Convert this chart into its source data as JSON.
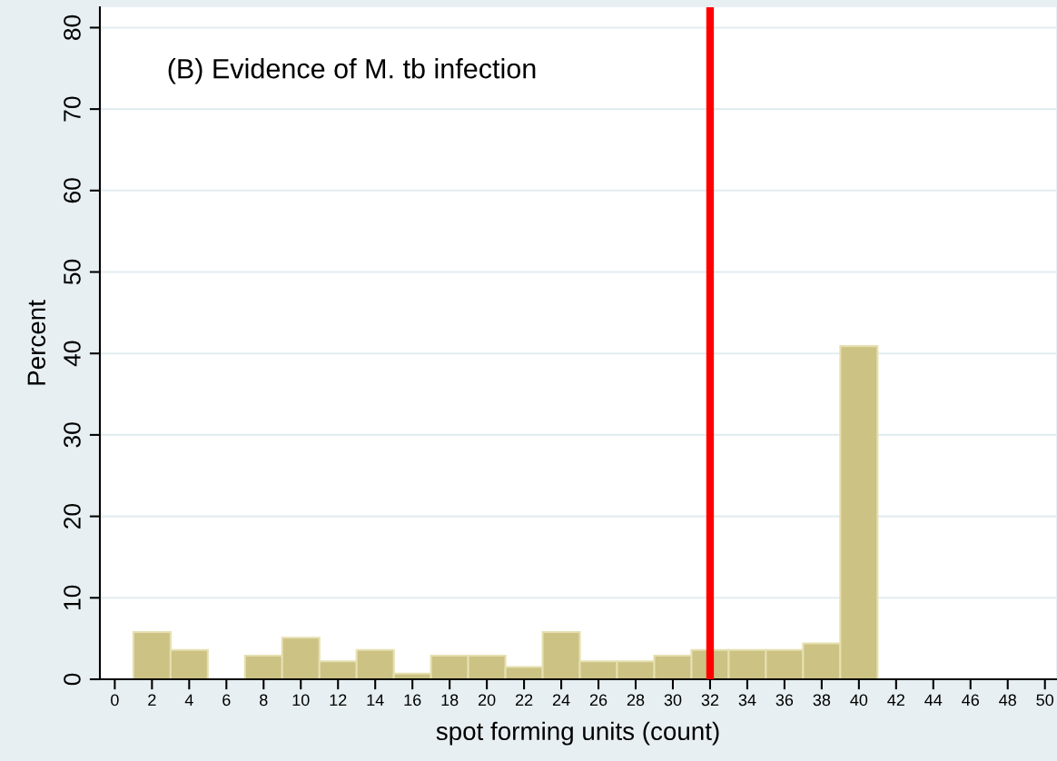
{
  "chart_data": {
    "type": "histogram",
    "title": "(B) Evidence of M. tb infection",
    "xlabel": "spot forming units (count)",
    "ylabel": "Percent",
    "bins": [
      1,
      3,
      5,
      7,
      9,
      11,
      13,
      15,
      17,
      19,
      21,
      23,
      25,
      27,
      29,
      31,
      33,
      35,
      37,
      39,
      41
    ],
    "values": [
      5.8,
      3.6,
      0,
      2.9,
      5.1,
      2.2,
      3.6,
      0.7,
      2.9,
      2.9,
      1.5,
      5.8,
      2.2,
      2.2,
      2.9,
      3.6,
      3.6,
      3.6,
      4.4,
      40.9
    ],
    "color": "#cbc283",
    "xlim": [
      -0.8,
      50.6
    ],
    "ylim": [
      0,
      82.5
    ],
    "xticks": [
      0,
      2,
      4,
      6,
      8,
      10,
      12,
      14,
      16,
      18,
      20,
      22,
      24,
      26,
      28,
      30,
      32,
      34,
      36,
      38,
      40,
      42,
      44,
      46,
      48,
      50
    ],
    "yticks": [
      0,
      10,
      20,
      30,
      40,
      50,
      60,
      70,
      80
    ],
    "grid": "y",
    "ref_lines": [
      {
        "axis": "x",
        "value": 32,
        "color": "#ff0000"
      }
    ]
  }
}
